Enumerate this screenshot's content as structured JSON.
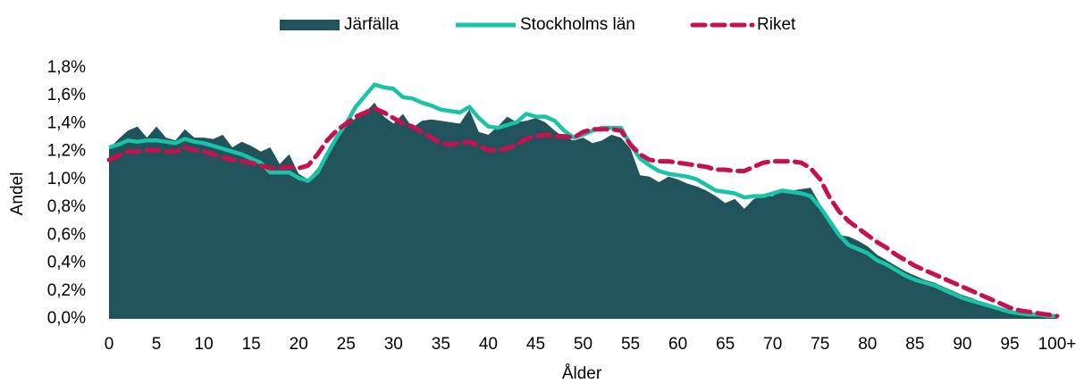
{
  "chart_data": {
    "type": "line",
    "ylabel": "Andel",
    "xlabel": "Ålder",
    "categories": [
      "0",
      null,
      null,
      null,
      null,
      "5",
      null,
      null,
      null,
      null,
      "10",
      null,
      null,
      null,
      null,
      "15",
      null,
      null,
      null,
      null,
      "20",
      null,
      null,
      null,
      null,
      "25",
      null,
      null,
      null,
      null,
      "30",
      null,
      null,
      null,
      null,
      "35",
      null,
      null,
      null,
      null,
      "40",
      null,
      null,
      null,
      null,
      "45",
      null,
      null,
      null,
      null,
      "50",
      null,
      null,
      null,
      null,
      "55",
      null,
      null,
      null,
      null,
      "60",
      null,
      null,
      null,
      null,
      "65",
      null,
      null,
      null,
      null,
      "70",
      null,
      null,
      null,
      null,
      "75",
      null,
      null,
      null,
      null,
      "80",
      null,
      null,
      null,
      null,
      "85",
      null,
      null,
      null,
      null,
      "90",
      null,
      null,
      null,
      null,
      "95",
      null,
      null,
      null,
      null,
      "100+"
    ],
    "ylim": [
      0,
      1.8
    ],
    "yticks": [
      {
        "value": 0,
        "label": "0,0%"
      },
      {
        "value": 0.2,
        "label": "0,2%"
      },
      {
        "value": 0.4,
        "label": "0,4%"
      },
      {
        "value": 0.6,
        "label": "0,6%"
      },
      {
        "value": 0.8,
        "label": "0,8%"
      },
      {
        "value": 1.0,
        "label": "1,0%"
      },
      {
        "value": 1.2,
        "label": "1,2%"
      },
      {
        "value": 1.4,
        "label": "1,4%"
      },
      {
        "value": 1.6,
        "label": "1,6%"
      },
      {
        "value": 1.8,
        "label": "1,8%"
      }
    ],
    "grid": false,
    "legend": "top",
    "series": [
      {
        "name": "Järfälla",
        "type": "area",
        "color": "#21535d",
        "values": [
          1.22,
          1.29,
          1.35,
          1.38,
          1.3,
          1.38,
          1.3,
          1.28,
          1.36,
          1.3,
          1.3,
          1.29,
          1.32,
          1.23,
          1.27,
          1.24,
          1.2,
          1.23,
          1.11,
          1.18,
          1.04,
          1.0,
          1.08,
          1.2,
          1.3,
          1.38,
          1.44,
          1.48,
          1.55,
          1.45,
          1.4,
          1.47,
          1.37,
          1.42,
          1.43,
          1.42,
          1.41,
          1.4,
          1.5,
          1.34,
          1.32,
          1.38,
          1.45,
          1.41,
          1.42,
          1.44,
          1.41,
          1.35,
          1.3,
          1.28,
          1.3,
          1.26,
          1.28,
          1.32,
          1.3,
          1.22,
          1.03,
          1.02,
          0.98,
          1.02,
          1.0,
          0.97,
          0.95,
          0.92,
          0.88,
          0.83,
          0.86,
          0.79,
          0.86,
          0.88,
          0.88,
          0.93,
          0.92,
          0.93,
          0.94,
          0.82,
          0.68,
          0.6,
          0.59,
          0.56,
          0.52,
          0.46,
          0.42,
          0.38,
          0.34,
          0.31,
          0.28,
          0.26,
          0.23,
          0.2,
          0.17,
          0.15,
          0.12,
          0.1,
          0.08,
          0.06,
          0.05,
          0.04,
          0.03,
          0.02,
          0.02
        ]
      },
      {
        "name": "Stockholms län",
        "type": "line",
        "color": "#19c3a5",
        "values": [
          1.23,
          1.25,
          1.28,
          1.27,
          1.28,
          1.28,
          1.27,
          1.26,
          1.29,
          1.27,
          1.26,
          1.24,
          1.22,
          1.2,
          1.18,
          1.15,
          1.12,
          1.05,
          1.05,
          1.05,
          1.01,
          0.99,
          1.05,
          1.18,
          1.3,
          1.4,
          1.52,
          1.6,
          1.68,
          1.66,
          1.65,
          1.59,
          1.58,
          1.55,
          1.53,
          1.5,
          1.49,
          1.48,
          1.52,
          1.44,
          1.38,
          1.37,
          1.39,
          1.41,
          1.47,
          1.45,
          1.45,
          1.42,
          1.35,
          1.3,
          1.32,
          1.35,
          1.37,
          1.37,
          1.37,
          1.25,
          1.15,
          1.1,
          1.06,
          1.04,
          1.03,
          1.02,
          1.0,
          0.96,
          0.92,
          0.91,
          0.9,
          0.87,
          0.88,
          0.88,
          0.9,
          0.92,
          0.91,
          0.9,
          0.88,
          0.8,
          0.7,
          0.6,
          0.53,
          0.5,
          0.47,
          0.42,
          0.39,
          0.35,
          0.31,
          0.28,
          0.26,
          0.24,
          0.21,
          0.18,
          0.15,
          0.13,
          0.11,
          0.09,
          0.07,
          0.05,
          0.04,
          0.03,
          0.03,
          0.02,
          0.02
        ]
      },
      {
        "name": "Riket",
        "type": "line",
        "dashed": true,
        "color": "#c8104e",
        "values": [
          1.14,
          1.17,
          1.2,
          1.2,
          1.21,
          1.21,
          1.2,
          1.2,
          1.23,
          1.21,
          1.2,
          1.18,
          1.16,
          1.14,
          1.13,
          1.12,
          1.1,
          1.08,
          1.08,
          1.09,
          1.08,
          1.1,
          1.18,
          1.28,
          1.35,
          1.4,
          1.45,
          1.48,
          1.51,
          1.48,
          1.44,
          1.4,
          1.38,
          1.34,
          1.3,
          1.26,
          1.25,
          1.26,
          1.27,
          1.24,
          1.21,
          1.21,
          1.22,
          1.25,
          1.29,
          1.31,
          1.32,
          1.31,
          1.31,
          1.3,
          1.34,
          1.36,
          1.36,
          1.36,
          1.35,
          1.25,
          1.18,
          1.14,
          1.13,
          1.13,
          1.12,
          1.11,
          1.1,
          1.09,
          1.07,
          1.07,
          1.06,
          1.06,
          1.09,
          1.12,
          1.13,
          1.13,
          1.13,
          1.12,
          1.08,
          1.0,
          0.87,
          0.77,
          0.7,
          0.65,
          0.6,
          0.55,
          0.51,
          0.46,
          0.42,
          0.38,
          0.35,
          0.32,
          0.29,
          0.26,
          0.23,
          0.2,
          0.17,
          0.14,
          0.11,
          0.08,
          0.06,
          0.05,
          0.04,
          0.03,
          0.02
        ]
      }
    ]
  }
}
